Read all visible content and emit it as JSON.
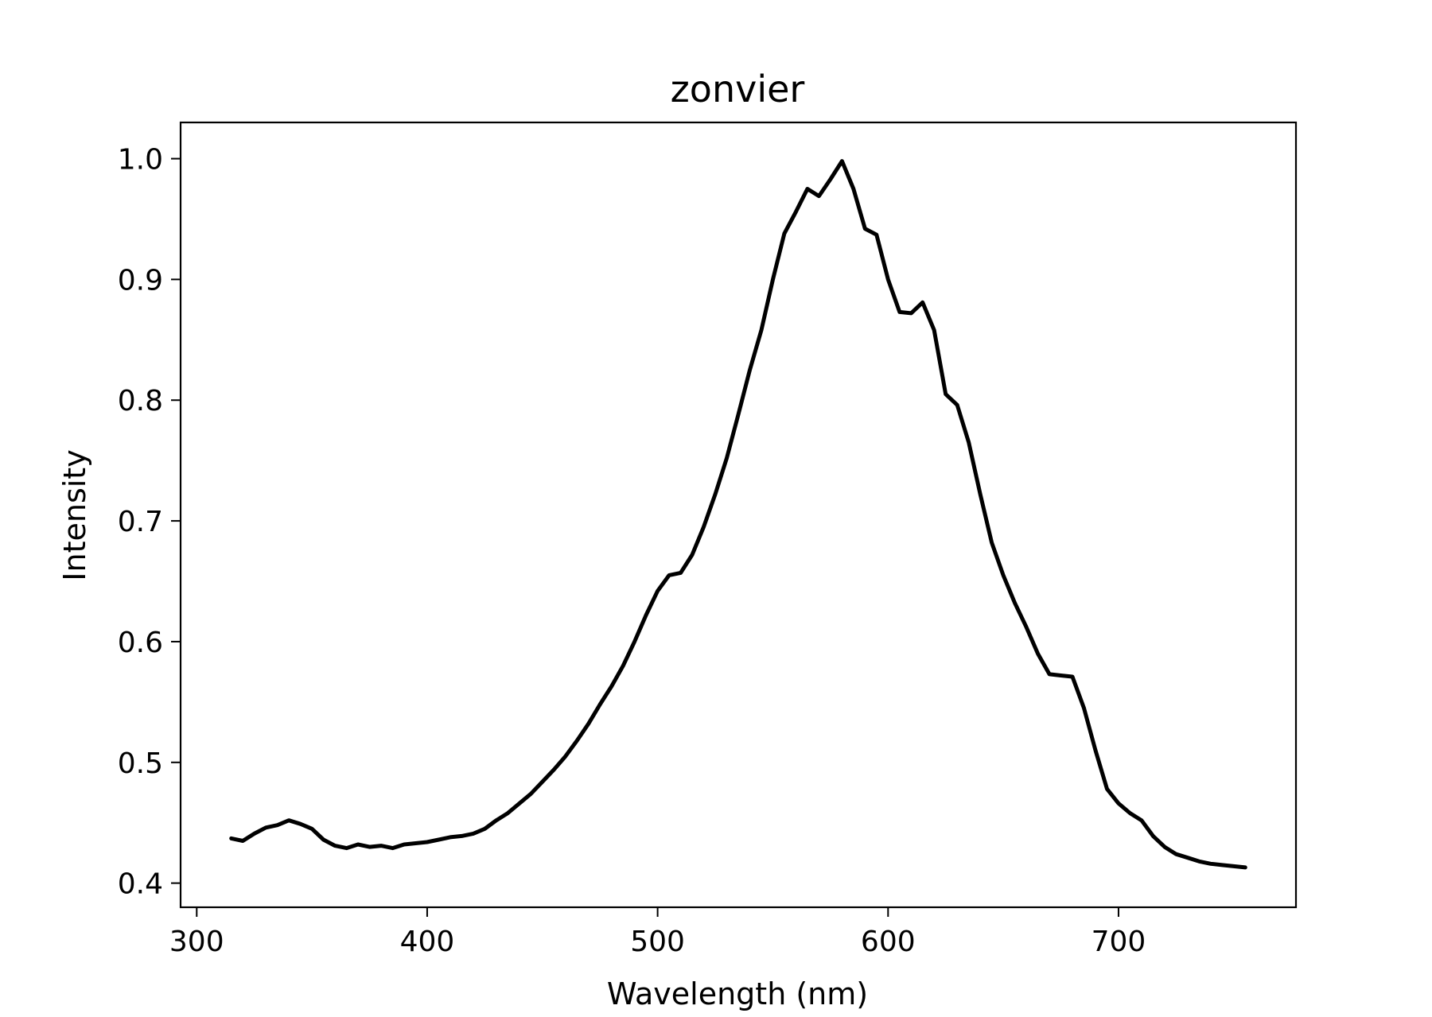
{
  "chart_data": {
    "type": "line",
    "title": "zonvier",
    "xlabel": "Wavelength (nm)",
    "ylabel": "Intensity",
    "xlim": [
      293,
      777
    ],
    "ylim": [
      0.38,
      1.03
    ],
    "xticks": [
      300,
      400,
      500,
      600,
      700
    ],
    "yticks": [
      0.4,
      0.5,
      0.6,
      0.7,
      0.8,
      0.9,
      1.0
    ],
    "xtick_labels": [
      "300",
      "400",
      "500",
      "600",
      "700"
    ],
    "ytick_labels": [
      "0.4",
      "0.5",
      "0.6",
      "0.7",
      "0.8",
      "0.9",
      "1.0"
    ],
    "grid": false,
    "legend": "none",
    "line_color": "#000000",
    "series": [
      {
        "x": [
          315,
          320,
          325,
          330,
          335,
          340,
          345,
          350,
          355,
          360,
          365,
          370,
          375,
          380,
          385,
          390,
          395,
          400,
          405,
          410,
          415,
          420,
          425,
          430,
          435,
          440,
          445,
          450,
          455,
          460,
          465,
          470,
          475,
          480,
          485,
          490,
          495,
          500,
          505,
          510,
          515,
          520,
          525,
          530,
          535,
          540,
          545,
          550,
          555,
          560,
          565,
          570,
          575,
          580,
          585,
          590,
          595,
          600,
          605,
          610,
          615,
          620,
          625,
          630,
          635,
          640,
          645,
          650,
          655,
          660,
          665,
          670,
          675,
          680,
          685,
          690,
          695,
          700,
          705,
          710,
          715,
          720,
          725,
          730,
          735,
          740,
          745,
          750,
          755
        ],
        "y": [
          0.437,
          0.435,
          0.441,
          0.446,
          0.448,
          0.452,
          0.449,
          0.445,
          0.436,
          0.431,
          0.429,
          0.432,
          0.43,
          0.431,
          0.429,
          0.432,
          0.433,
          0.434,
          0.436,
          0.438,
          0.439,
          0.441,
          0.445,
          0.452,
          0.458,
          0.466,
          0.474,
          0.484,
          0.494,
          0.505,
          0.518,
          0.532,
          0.548,
          0.563,
          0.58,
          0.6,
          0.622,
          0.642,
          0.655,
          0.657,
          0.672,
          0.695,
          0.722,
          0.752,
          0.788,
          0.825,
          0.858,
          0.9,
          0.938,
          0.956,
          0.975,
          0.969,
          0.983,
          0.998,
          0.975,
          0.942,
          0.937,
          0.9,
          0.873,
          0.872,
          0.881,
          0.858,
          0.805,
          0.796,
          0.765,
          0.722,
          0.682,
          0.655,
          0.632,
          0.612,
          0.59,
          0.573,
          0.572,
          0.571,
          0.545,
          0.51,
          0.478,
          0.466,
          0.458,
          0.452,
          0.439,
          0.43,
          0.424,
          0.421,
          0.418,
          0.416,
          0.415,
          0.414,
          0.413
        ]
      }
    ]
  }
}
